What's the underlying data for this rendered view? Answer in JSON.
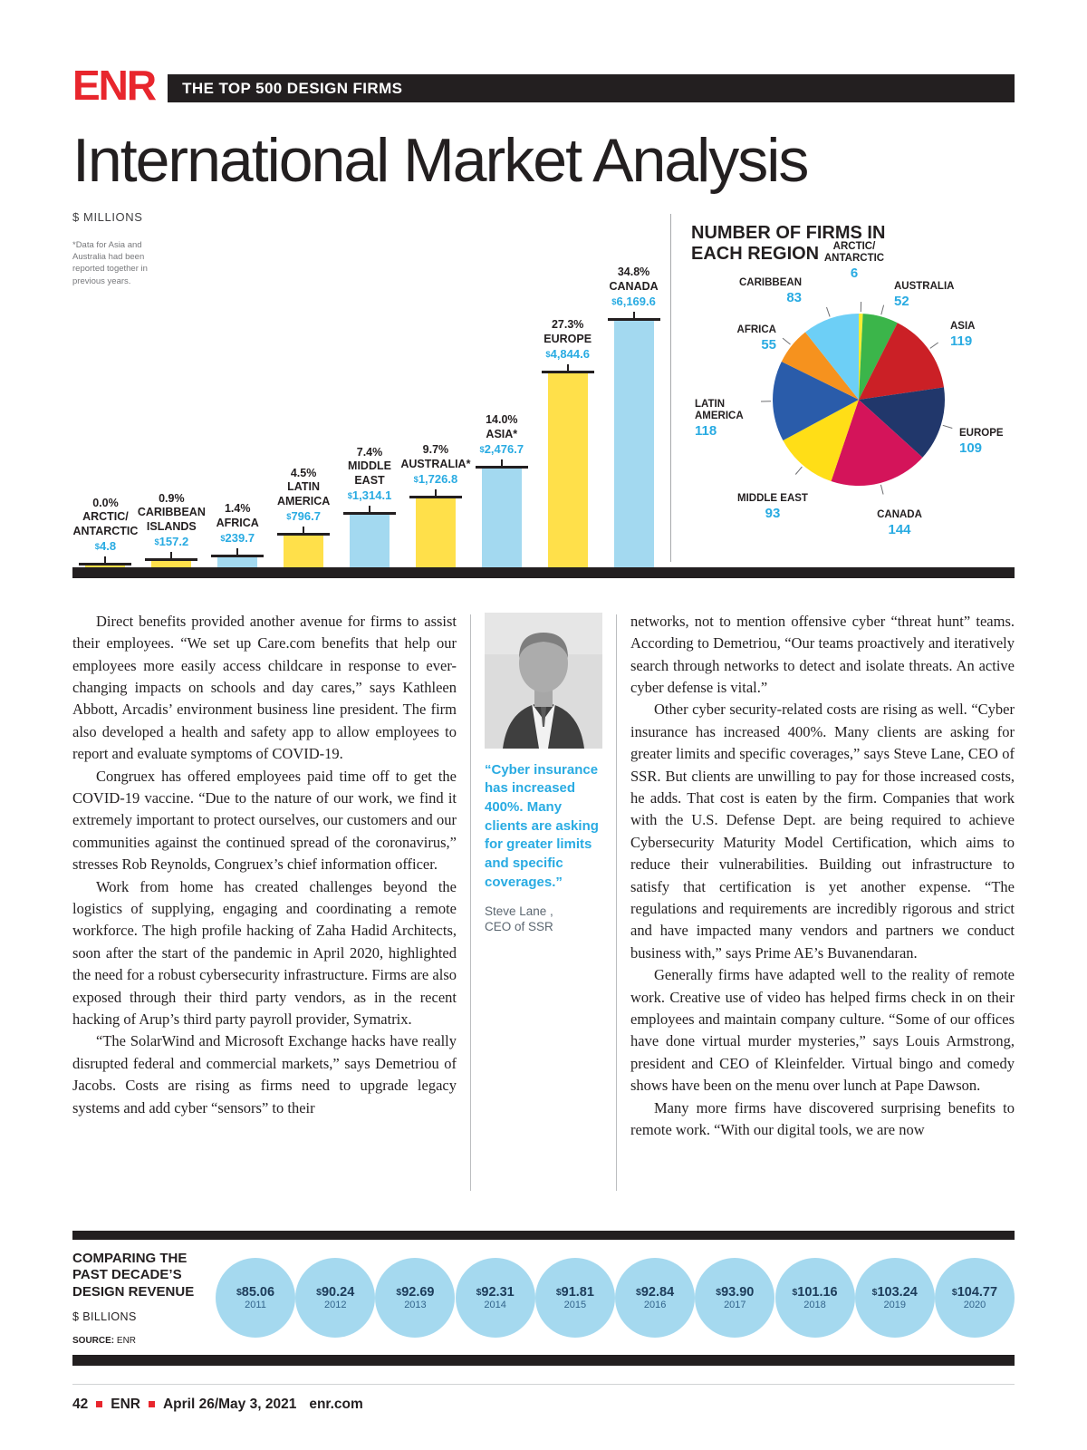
{
  "masthead": {
    "logo": "ENR",
    "banner": "THE TOP 500 DESIGN FIRMS"
  },
  "title": "International Market Analysis",
  "chart_data": [
    {
      "type": "bar",
      "title": "International Market Analysis",
      "units": "$ MILLIONS",
      "footnote": "*Data for Asia and Australia had been reported together in previous years.",
      "categories": [
        "ARCTIC/ANTARCTIC",
        "CARIBBEAN ISLANDS",
        "AFRICA",
        "LATIN AMERICA",
        "MIDDLE EAST",
        "AUSTRALIA*",
        "ASIA*",
        "EUROPE",
        "CANADA"
      ],
      "category_display": [
        "ARCTIC/\nANTARCTIC",
        "CARIBBEAN\nISLANDS",
        "AFRICA",
        "LATIN\nAMERICA",
        "MIDDLE\nEAST",
        "AUSTRALIA*",
        "ASIA*",
        "EUROPE",
        "CANADA"
      ],
      "values": [
        4.8,
        157.2,
        239.7,
        796.7,
        1314.1,
        1726.8,
        2476.7,
        4844.6,
        6169.6
      ],
      "percent_labels": [
        "0.0%",
        "0.9%",
        "1.4%",
        "4.5%",
        "7.4%",
        "9.7%",
        "14.0%",
        "27.3%",
        "34.8%"
      ],
      "value_labels": [
        "$4.8",
        "$157.2",
        "$239.7",
        "$796.7",
        "$1,314.1",
        "$1,726.8",
        "$2,476.7",
        "$4,844.6",
        "$6,169.6"
      ],
      "bar_colors": [
        "#FFE04A",
        "#FFE04A",
        "#A3D9F0",
        "#FFE04A",
        "#A3D9F0",
        "#FFE04A",
        "#A3D9F0",
        "#FFE04A",
        "#A3D9F0"
      ],
      "ylim": [
        0,
        6169.6
      ]
    },
    {
      "type": "pie",
      "title": "NUMBER OF FIRMS IN EACH REGION",
      "slices": [
        {
          "label": "ARCTIC/ANTARCTIC",
          "display": "ARCTIC/\nANTARCTIC",
          "value": 6,
          "color": "#F9ED32"
        },
        {
          "label": "AUSTRALIA",
          "value": 52,
          "color": "#3BB54A"
        },
        {
          "label": "ASIA",
          "value": 119,
          "color": "#CB2026"
        },
        {
          "label": "EUROPE",
          "value": 109,
          "color": "#21376B"
        },
        {
          "label": "CANADA",
          "value": 144,
          "color": "#D4145A"
        },
        {
          "label": "MIDDLE EAST",
          "value": 93,
          "color": "#FFDE17"
        },
        {
          "label": "LATIN AMERICA",
          "display": "LATIN\nAMERICA",
          "value": 118,
          "color": "#2A5CAA"
        },
        {
          "label": "AFRICA",
          "value": 55,
          "color": "#F6921E"
        },
        {
          "label": "CARIBBEAN",
          "value": 83,
          "color": "#6DCFF6"
        }
      ],
      "total": 779,
      "number_color": "#29ABE2"
    },
    {
      "type": "circles-timeline",
      "title": "COMPARING THE PAST DECADE’S DESIGN REVENUE",
      "title_display": "COMPARING THE\nPAST DECADE’S\nDESIGN REVENUE",
      "units": "$ BILLIONS",
      "source_label": "SOURCE:",
      "source_value": "ENR",
      "years": [
        "2011",
        "2012",
        "2013",
        "2014",
        "2015",
        "2016",
        "2017",
        "2018",
        "2019",
        "2020"
      ],
      "values": [
        85.06,
        90.24,
        92.69,
        92.31,
        91.81,
        92.84,
        93.9,
        101.16,
        103.24,
        104.77
      ],
      "value_labels": [
        "$85.06",
        "$90.24",
        "$92.69",
        "$92.31",
        "$91.81",
        "$92.84",
        "$93.90",
        "$101.16",
        "$103.24",
        "$104.77"
      ],
      "circle_color": "#A5D9EF"
    }
  ],
  "article": {
    "columns": [
      {
        "paragraphs": [
          "Direct benefits provided another avenue for firms to assist their employees. “We set up Care.com benefits that help our employees more easily access childcare in response to ever-changing impacts on schools and day cares,” says Kathleen Abbott, Arcadis’ environment business line president. The firm also developed a health and safety app to allow employees to report and evaluate symptoms of COVID-19.",
          "Congruex has offered employees paid time off to get the COVID-19 vaccine. “Due to the nature of our work, we find it extremely important to protect ourselves, our customers and our communities against the continued spread of the coronavirus,” stresses Rob Reynolds, Congruex’s chief information officer.",
          "Work from home has created challenges beyond the logistics of supplying, engaging and coordinating a remote workforce. The high profile hacking of Zaha Hadid Architects, soon after the start of the pandemic in April 2020, highlighted the need for a robust cybersecurity infrastructure. Firms are also exposed through their third party vendors, as in the recent hacking of Arup’s third party payroll provider, Symatrix.",
          "“The SolarWind and Microsoft Exchange hacks have really disrupted federal and commercial markets,” says Demetriou of Jacobs. Costs are rising as firms need to upgrade legacy systems and add cyber “sensors” to their"
        ]
      },
      {
        "paragraphs": [
          "networks, not to mention offensive cyber “threat hunt” teams. According to Demetriou, “Our teams proactively and iteratively search through networks to detect and isolate threats. An active cyber defense is vital.”",
          "Other cyber security-related costs are rising as well. “Cyber insurance has increased 400%. Many clients are asking for greater limits and specific coverages,” says Steve Lane, CEO of SSR. But clients are unwilling to pay for those increased costs, he adds. That cost is eaten by the firm. Companies that work with the U.S. Defense Dept. are being required to achieve Cybersecurity Maturity Model Certification, which aims to reduce their vulnerabilities. Building out infrastructure to satisfy that certification is yet another expense. “The regulations and requirements are incredibly rigorous and strict and have impacted many vendors and partners we conduct business with,” says Prime AE’s Buvanendaran.",
          "Generally firms have adapted well to the reality of remote work. Creative use of video has helped firms check in on their employees and maintain company culture. “Some of our offices have done virtual murder mysteries,” says Louis Armstrong, president and CEO of Kleinfelder. Virtual bingo and comedy shows have been on the menu over lunch at Pape Dawson.",
          "Many more firms have discovered surprising benefits to remote work. “With our digital tools, we are now"
        ]
      }
    ],
    "pull_quote": {
      "text": "“Cyber insurance has increased 400%. Many clients are asking for greater limits and specific coverages.”",
      "attribution_name": "Steve Lane ,",
      "attribution_title": "CEO of SSR"
    }
  },
  "footer": {
    "page_number": "42",
    "publication": "ENR",
    "date": "April 26/May 3, 2021",
    "website": "enr.com"
  }
}
